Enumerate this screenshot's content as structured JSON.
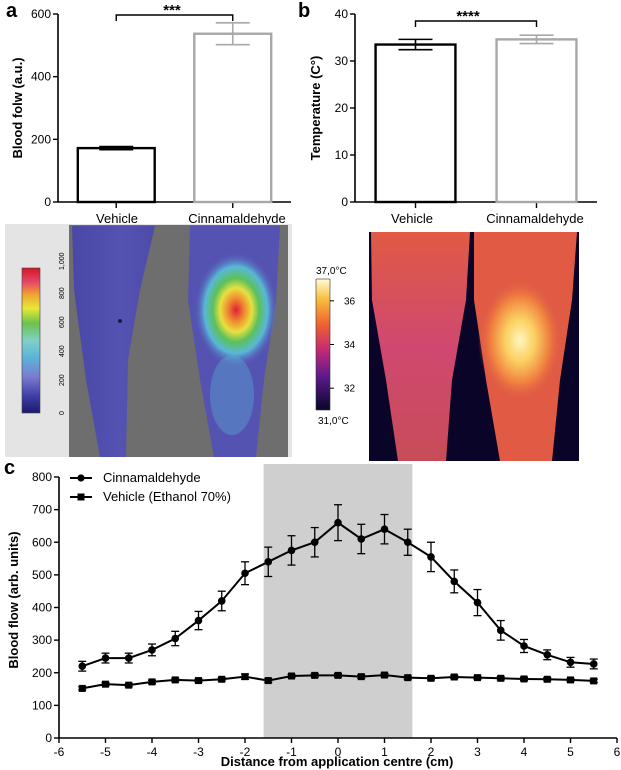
{
  "panels": {
    "a": {
      "letter": "a"
    },
    "b": {
      "letter": "b"
    },
    "c": {
      "letter": "c"
    }
  },
  "images": {
    "perfusion_scale": [
      "0",
      "200",
      "400",
      "600",
      "800",
      "1,000"
    ],
    "thermal_scale": {
      "max_label": "37,0°C",
      "min_label": "31,0°C",
      "ticks": [
        "36",
        "34",
        "32"
      ]
    }
  },
  "chart_data": [
    {
      "panel": "a",
      "type": "bar",
      "categories": [
        "Vehicle",
        "Cinnamaldehyde"
      ],
      "values": [
        172,
        537
      ],
      "errors": [
        5,
        35
      ],
      "ylabel": "Blood folw (a.u.)",
      "ylim": [
        0,
        600
      ],
      "yticks": [
        "0",
        "200",
        "400",
        "600"
      ],
      "bar_colors": [
        "#000000",
        "#a8a8a8"
      ],
      "significance": "***"
    },
    {
      "panel": "b",
      "type": "bar",
      "categories": [
        "Vehicle",
        "Cinnamaldehyde"
      ],
      "values": [
        33.5,
        34.6
      ],
      "errors": [
        1.1,
        0.9
      ],
      "ylabel": "Temperature (C°)",
      "ylim": [
        0,
        40
      ],
      "yticks": [
        "0",
        "10",
        "20",
        "30",
        "40"
      ],
      "bar_colors": [
        "#000000",
        "#a8a8a8"
      ],
      "significance": "****"
    },
    {
      "panel": "c",
      "type": "line",
      "xlabel": "Distance from application centre (cm)",
      "ylabel": "Blood flow (arb. units)",
      "xlim": [
        -6,
        6
      ],
      "ylim": [
        0,
        800
      ],
      "xticks": [
        "-6",
        "-5",
        "-4",
        "-3",
        "-2",
        "-1",
        "0",
        "1",
        "2",
        "3",
        "4",
        "5",
        "6"
      ],
      "yticks": [
        "0",
        "100",
        "200",
        "300",
        "400",
        "500",
        "600",
        "700",
        "800"
      ],
      "shaded_region": [
        -1.6,
        1.6
      ],
      "legend_position": "top-left",
      "series": [
        {
          "name": "Cinnamaldehyde",
          "marker": "circle",
          "x": [
            -5.5,
            -5,
            -4.5,
            -4,
            -3.5,
            -3,
            -2.5,
            -2,
            -1.5,
            -1,
            -0.5,
            0,
            0.5,
            1,
            1.5,
            2,
            2.5,
            3,
            3.5,
            4,
            4.5,
            5,
            5.5
          ],
          "y": [
            220,
            245,
            245,
            270,
            305,
            360,
            420,
            505,
            540,
            575,
            600,
            660,
            610,
            640,
            600,
            555,
            480,
            415,
            330,
            282,
            255,
            232,
            227
          ],
          "err": [
            15,
            15,
            15,
            18,
            22,
            28,
            30,
            35,
            45,
            45,
            45,
            55,
            45,
            45,
            40,
            45,
            35,
            40,
            30,
            20,
            15,
            15,
            15
          ]
        },
        {
          "name": "Vehicle (Ethanol 70%)",
          "marker": "square",
          "x": [
            -5.5,
            -5,
            -4.5,
            -4,
            -3.5,
            -3,
            -2.5,
            -2,
            -1.5,
            -1,
            -0.5,
            0,
            0.5,
            1,
            1.5,
            2,
            2.5,
            3,
            3.5,
            4,
            4.5,
            5,
            5.5
          ],
          "y": [
            152,
            165,
            162,
            172,
            178,
            176,
            180,
            188,
            176,
            190,
            192,
            192,
            188,
            193,
            185,
            183,
            187,
            185,
            183,
            181,
            180,
            178,
            175
          ],
          "err": [
            5,
            5,
            5,
            5,
            5,
            5,
            5,
            8,
            5,
            5,
            5,
            5,
            5,
            5,
            5,
            5,
            5,
            5,
            5,
            5,
            5,
            5,
            5
          ]
        }
      ]
    }
  ]
}
